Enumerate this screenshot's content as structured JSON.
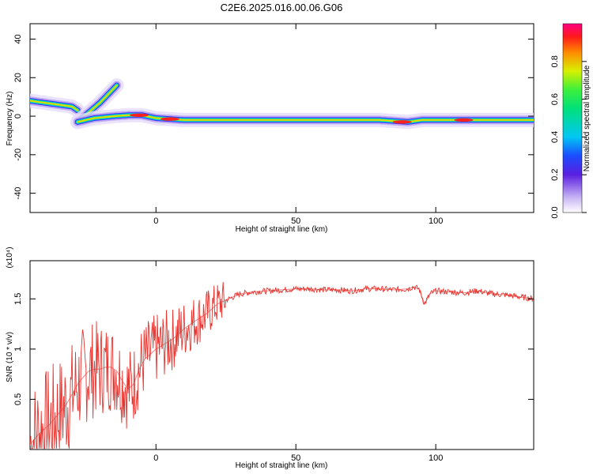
{
  "figure": {
    "title": "C2E6.2025.016.00.06.G06"
  },
  "chart_data": [
    {
      "type": "heatmap",
      "xlabel": "Height of straight line (km)",
      "ylabel": "Frequency (Hz)",
      "xlim": [
        -45,
        135
      ],
      "ylim": [
        -50,
        48
      ],
      "xticks": [
        0,
        50,
        100
      ],
      "yticks": [
        -40,
        -20,
        0,
        20,
        40
      ],
      "colorbar": {
        "label": "Normalized spectral amplitude",
        "range": [
          0,
          1
        ],
        "ticks": [
          0.0,
          0.2,
          0.4,
          0.6,
          0.8
        ]
      },
      "ridges": [
        {
          "x": [
            -45,
            -40,
            -35,
            -30,
            -28
          ],
          "y": [
            8,
            7,
            6,
            5,
            3
          ]
        },
        {
          "x": [
            -28,
            -24,
            -20,
            -16,
            -14
          ],
          "y": [
            -3,
            2,
            7,
            13,
            16
          ]
        },
        {
          "x": [
            -28,
            -22,
            -15,
            -10,
            -5,
            0,
            10,
            20,
            40,
            60,
            80,
            90,
            95,
            100,
            120,
            135
          ],
          "y": [
            -3,
            -1,
            0,
            0.5,
            0.5,
            -1,
            -2,
            -2,
            -2,
            -2,
            -2,
            -3,
            -2,
            -2,
            -2,
            -2
          ]
        }
      ],
      "hot_spots": [
        {
          "x": -6,
          "y": 0.5
        },
        {
          "x": 5,
          "y": -1.5
        },
        {
          "x": 88,
          "y": -3
        },
        {
          "x": 110,
          "y": -2
        }
      ]
    },
    {
      "type": "line",
      "xlabel": "Height of straight line (km)",
      "ylabel": "SNR (10 * v/v)",
      "y_multiplier": "(x10⁴)",
      "xlim": [
        -45,
        135
      ],
      "ylim": [
        0,
        1.88
      ],
      "xticks": [
        0,
        50,
        100
      ],
      "yticks": [
        0.5,
        1.0,
        1.5
      ],
      "series": [
        {
          "color": "#e8332e",
          "x": [
            -45,
            -42,
            -38,
            -35,
            -32,
            -30,
            -28,
            -26,
            -24,
            -22,
            -20,
            -18,
            -16,
            -14,
            -12,
            -10,
            -8,
            -6,
            -4,
            -2,
            0,
            3,
            6,
            10,
            14,
            18,
            22,
            26,
            30,
            35,
            40,
            45,
            50,
            55,
            60,
            65,
            70,
            75,
            80,
            85,
            90,
            92,
            94,
            96,
            98,
            100,
            105,
            110,
            115,
            120,
            125,
            130,
            135
          ],
          "y": [
            0.05,
            0.15,
            0.25,
            0.35,
            0.45,
            0.55,
            0.65,
            0.72,
            0.78,
            0.8,
            0.8,
            0.82,
            0.82,
            0.78,
            0.68,
            0.6,
            0.65,
            0.8,
            0.9,
            0.95,
            1.0,
            1.05,
            1.1,
            1.2,
            1.28,
            1.35,
            1.45,
            1.5,
            1.55,
            1.57,
            1.58,
            1.59,
            1.6,
            1.6,
            1.59,
            1.59,
            1.58,
            1.6,
            1.6,
            1.59,
            1.6,
            1.62,
            1.6,
            1.45,
            1.55,
            1.58,
            1.57,
            1.56,
            1.58,
            1.55,
            1.54,
            1.52,
            1.5
          ]
        }
      ]
    }
  ]
}
